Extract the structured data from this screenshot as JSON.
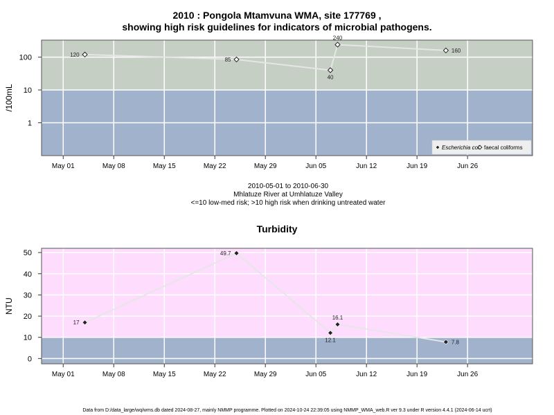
{
  "chart_data": [
    {
      "type": "scatter",
      "title_line1": "2010 : Pongola Mtamvuna WMA, site 177769 ,",
      "title_line2": "showing high risk guidelines for indicators of microbial pathogens.",
      "ylabel": "/100mL",
      "y_scale": "log",
      "ylim": [
        0.1,
        330
      ],
      "y_ticks": [
        {
          "v": 1,
          "label": "1"
        },
        {
          "v": 10,
          "label": "10"
        },
        {
          "v": 100,
          "label": "100"
        }
      ],
      "xlim": [
        "2010-04-28",
        "2010-07-05"
      ],
      "x_ticks": [
        {
          "date": "2010-05-01",
          "label": "May 01"
        },
        {
          "date": "2010-05-08",
          "label": "May 08"
        },
        {
          "date": "2010-05-15",
          "label": "May 15"
        },
        {
          "date": "2010-05-22",
          "label": "May 22"
        },
        {
          "date": "2010-05-29",
          "label": "May 29"
        },
        {
          "date": "2010-06-05",
          "label": "Jun 05"
        },
        {
          "date": "2010-06-12",
          "label": "Jun 12"
        },
        {
          "date": "2010-06-19",
          "label": "Jun 19"
        },
        {
          "date": "2010-06-26",
          "label": "Jun 26"
        }
      ],
      "bands": [
        {
          "from": 0.1,
          "to": 10,
          "color": "#a1b2cc"
        },
        {
          "from": 10,
          "to": 330,
          "color": "#c5cfc3"
        }
      ],
      "grid": true,
      "series": [
        {
          "name": "faecal coliforms",
          "marker": "open-diamond",
          "line_color": "#e6e6e6",
          "points": [
            {
              "date": "2010-05-04",
              "value": 120,
              "label": "120",
              "label_pos": "left"
            },
            {
              "date": "2010-05-25",
              "value": 85,
              "label": "85",
              "label_pos": "left"
            },
            {
              "date": "2010-06-07",
              "value": 40,
              "label": "40",
              "label_pos": "below"
            },
            {
              "date": "2010-06-08",
              "value": 240,
              "label": "240",
              "label_pos": "above"
            },
            {
              "date": "2010-06-23",
              "value": 160,
              "label": "160",
              "label_pos": "right"
            }
          ]
        }
      ],
      "legend": {
        "position": "bottom-right",
        "entries": [
          {
            "label": "Escherichia coli",
            "marker": "filled-diamond",
            "italic": true
          },
          {
            "label": "faecal coliforms",
            "marker": "open-diamond",
            "italic": false
          }
        ]
      }
    },
    {
      "type": "scatter",
      "title": "Turbidity",
      "ylabel": "NTU",
      "ylim": [
        -2.5,
        52
      ],
      "y_ticks": [
        0,
        10,
        20,
        30,
        40,
        50
      ],
      "xlim": [
        "2010-04-28",
        "2010-07-05"
      ],
      "x_ticks": [
        {
          "date": "2010-05-01",
          "label": "May 01"
        },
        {
          "date": "2010-05-08",
          "label": "May 08"
        },
        {
          "date": "2010-05-15",
          "label": "May 15"
        },
        {
          "date": "2010-05-22",
          "label": "May 22"
        },
        {
          "date": "2010-05-29",
          "label": "May 29"
        },
        {
          "date": "2010-06-05",
          "label": "Jun 05"
        },
        {
          "date": "2010-06-12",
          "label": "Jun 12"
        },
        {
          "date": "2010-06-19",
          "label": "Jun 19"
        },
        {
          "date": "2010-06-26",
          "label": "Jun 26"
        }
      ],
      "bands": [
        {
          "from": -2.5,
          "to": 10,
          "color": "#a1b2cc"
        },
        {
          "from": 10,
          "to": 52,
          "color": "#fddcfd"
        }
      ],
      "grid": true,
      "series": [
        {
          "marker": "filled-diamond",
          "line_color": "#e6e6e6",
          "points": [
            {
              "date": "2010-05-04",
              "value": 17,
              "label": "17",
              "label_pos": "left"
            },
            {
              "date": "2010-05-25",
              "value": 49.7,
              "label": "49.7",
              "label_pos": "left"
            },
            {
              "date": "2010-06-07",
              "value": 12.1,
              "label": "12.1",
              "label_pos": "below"
            },
            {
              "date": "2010-06-08",
              "value": 16.1,
              "label": "16.1",
              "label_pos": "above"
            },
            {
              "date": "2010-06-23",
              "value": 7.8,
              "label": "7.8",
              "label_pos": "right"
            }
          ]
        }
      ]
    }
  ],
  "caption": {
    "line1": "2010-05-01 to 2010-06-30",
    "line2": "Mhlatuze River at Umhlatuze Valley",
    "line3": "<=10 low-med risk; >10 high risk when drinking untreated water"
  },
  "footer": "Data from D:/data_large/wq/wms.db dated 2024-08-27, mainly NMMP programme. Plotted on 2024-10-24 22:39:05 using NMMP_WMA_web.R ver 9.3 under R version 4.4.1 (2024-06-14 ucrt)"
}
